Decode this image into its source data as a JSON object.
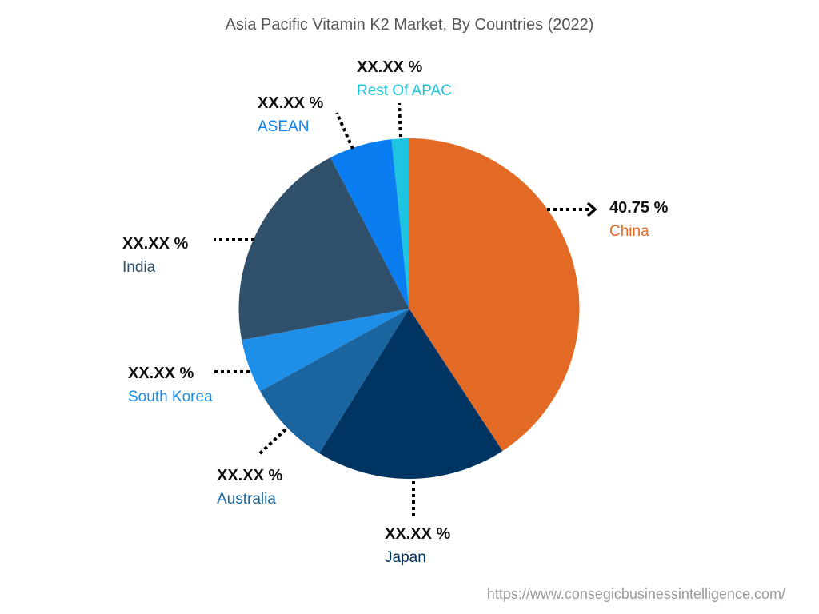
{
  "chart_data": {
    "type": "pie",
    "title": "Asia Pacific Vitamin K2 Market, By Countries (2022)",
    "start_angle_deg": 0,
    "direction": "clockwise",
    "slices": [
      {
        "label": "China",
        "value": 40.75,
        "display": "40.75 %",
        "color": "#E36A25"
      },
      {
        "label": "Japan",
        "value": 18.1,
        "display": "XX.XX %",
        "color": "#003463"
      },
      {
        "label": "Australia",
        "value": 8.1,
        "display": "XX.XX %",
        "color": "#1A65A0"
      },
      {
        "label": "South Korea",
        "value": 5.1,
        "display": "XX.XX %",
        "color": "#1E8FE8"
      },
      {
        "label": "India",
        "value": 20.3,
        "display": "XX.XX %",
        "color": "#2F4F6A"
      },
      {
        "label": "ASEAN",
        "value": 6.0,
        "display": "XX.XX %",
        "color": "#0A7DF0"
      },
      {
        "label": "Rest Of APAC",
        "value": 1.65,
        "display": "XX.XX %",
        "color": "#1EC5E0"
      }
    ],
    "legend": "none (callout labels)"
  },
  "title": "Asia Pacific Vitamin K2 Market, By Countries (2022)",
  "labels": {
    "china": {
      "value": "40.75 %",
      "name": "China"
    },
    "japan": {
      "value": "XX.XX %",
      "name": "Japan"
    },
    "australia": {
      "value": "XX.XX %",
      "name": "Australia"
    },
    "south_korea": {
      "value": "XX.XX %",
      "name": "South Korea"
    },
    "india": {
      "value": "XX.XX %",
      "name": "India"
    },
    "asean": {
      "value": "XX.XX %",
      "name": "ASEAN"
    },
    "rest": {
      "value": "XX.XX %",
      "name": "Rest Of APAC"
    }
  },
  "source_url": "https://www.consegicbusinessintelligence.com/"
}
